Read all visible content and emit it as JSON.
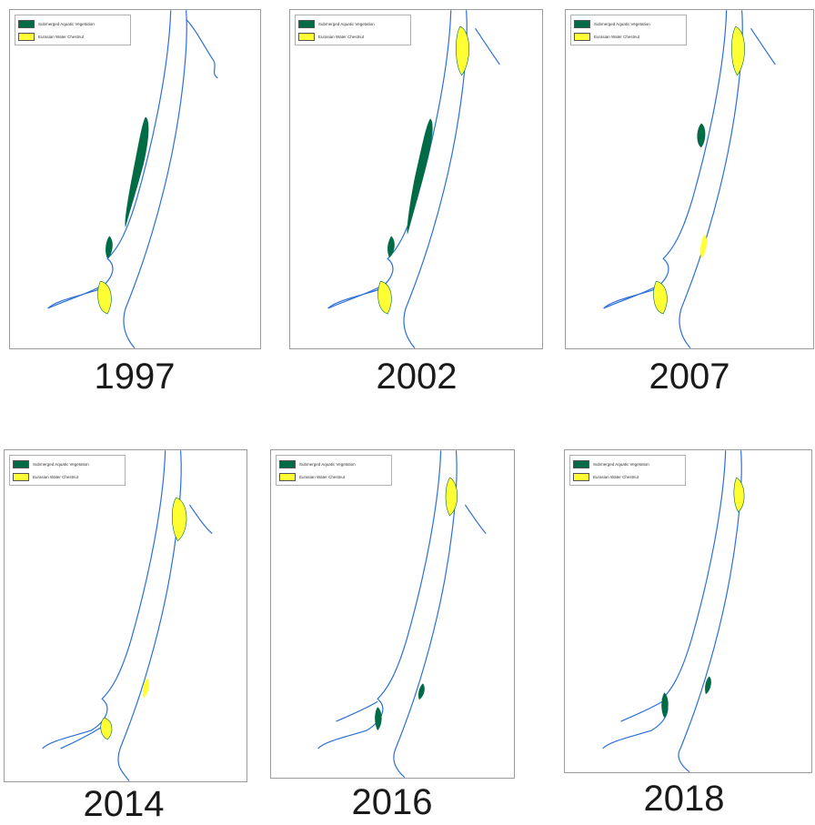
{
  "legend": {
    "sav_label": "Submerged Aquatic Vegetation",
    "ewc_label": "Eurasian Water Chestnut"
  },
  "colors": {
    "sav": "#006b45",
    "ewc": "#ffff33",
    "river_outline": "#2a6fd6",
    "panel_border": "#9a9a9a"
  },
  "maps": [
    {
      "year": "1997",
      "sav_bed": "large-central",
      "ewc_north": "none",
      "ewc_south": "present"
    },
    {
      "year": "2002",
      "sav_bed": "large-central",
      "ewc_north": "present",
      "ewc_south": "present"
    },
    {
      "year": "2007",
      "sav_bed": "small-central",
      "ewc_north": "present",
      "ewc_south": "present"
    },
    {
      "year": "2014",
      "sav_bed": "none",
      "ewc_north": "present",
      "ewc_south": "present"
    },
    {
      "year": "2016",
      "sav_bed": "none",
      "ewc_north": "present",
      "ewc_south": "minimal"
    },
    {
      "year": "2018",
      "sav_bed": "none",
      "ewc_north": "present",
      "ewc_south": "none"
    }
  ]
}
